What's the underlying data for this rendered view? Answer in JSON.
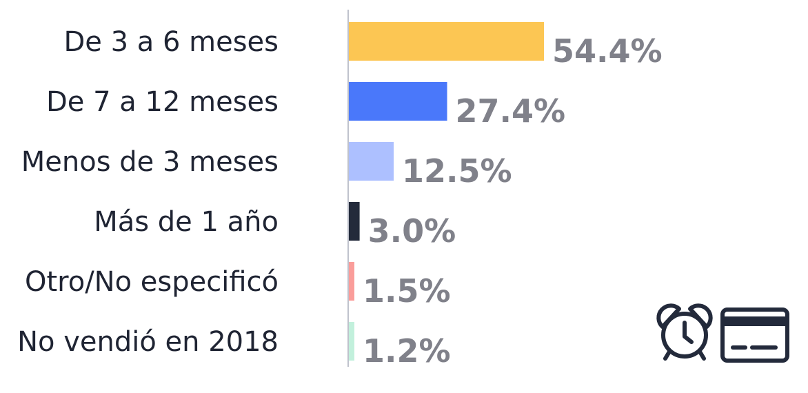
{
  "chart_data": {
    "type": "bar",
    "orientation": "horizontal",
    "categories": [
      "De 3 a 6 meses",
      "De 7 a 12 meses",
      "Menos de 3 meses",
      "Más de 1 año",
      "Otro/No especificó",
      "No vendió en 2018"
    ],
    "values": [
      54.4,
      27.4,
      12.5,
      3.0,
      1.5,
      1.2
    ],
    "value_labels": [
      "54.4%",
      "27.4%",
      "12.5%",
      "3.0%",
      "1.5%",
      "1.2%"
    ],
    "colors": [
      "#fcc653",
      "#4a78fa",
      "#adc0ff",
      "#232a3b",
      "#fa9d9a",
      "#c2f0dc"
    ],
    "value_label_color": "#80818a",
    "axis_color": "#bfc2cc",
    "xlim": [
      0,
      54.4
    ],
    "title": "",
    "xlabel": "",
    "ylabel": "",
    "grid": false,
    "legend": "none"
  },
  "icons": [
    "alarm-clock-icon",
    "credit-card-icon"
  ]
}
